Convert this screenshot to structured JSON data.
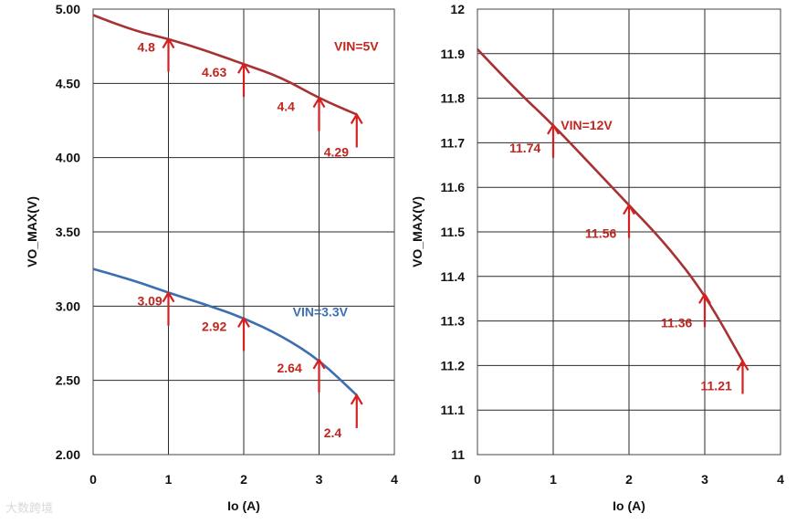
{
  "watermark": "大数跨境",
  "chart_data": [
    {
      "type": "line",
      "xlabel": "Io (A)",
      "ylabel": "VO_MAX(V)",
      "xlim": [
        0,
        4
      ],
      "ylim": [
        2.0,
        5.0
      ],
      "xticks": [
        "0",
        "1",
        "2",
        "3",
        "4"
      ],
      "yticks": [
        "2.00",
        "2.50",
        "3.00",
        "3.50",
        "4.00",
        "4.50",
        "5.00"
      ],
      "grid": true,
      "series": [
        {
          "name": "VIN=5V",
          "color": "#a83232",
          "x": [
            0,
            0.5,
            1,
            1.5,
            2,
            2.5,
            3,
            3.5
          ],
          "y": [
            4.96,
            4.86,
            4.8,
            4.72,
            4.63,
            4.54,
            4.4,
            4.29
          ],
          "labels": [
            {
              "x": 1,
              "y": 4.8,
              "text": "4.8"
            },
            {
              "x": 2,
              "y": 4.63,
              "text": "4.63"
            },
            {
              "x": 3,
              "y": 4.4,
              "text": "4.4"
            },
            {
              "x": 3.5,
              "y": 4.29,
              "text": "4.29"
            }
          ]
        },
        {
          "name": "VIN=3.3V",
          "color": "#3d6fb0",
          "x": [
            0,
            0.5,
            1,
            1.5,
            2,
            2.5,
            3,
            3.5
          ],
          "y": [
            3.25,
            3.18,
            3.09,
            3.01,
            2.92,
            2.8,
            2.64,
            2.4
          ],
          "labels": [
            {
              "x": 1,
              "y": 3.09,
              "text": "3.09"
            },
            {
              "x": 2,
              "y": 2.92,
              "text": "2.92"
            },
            {
              "x": 3,
              "y": 2.64,
              "text": "2.64"
            },
            {
              "x": 3.5,
              "y": 2.4,
              "text": "2.4"
            }
          ]
        }
      ]
    },
    {
      "type": "line",
      "xlabel": "Io (A)",
      "ylabel": "VO_MAX(V)",
      "xlim": [
        0,
        4
      ],
      "ylim": [
        11.0,
        12.0
      ],
      "xticks": [
        "0",
        "1",
        "2",
        "3",
        "4"
      ],
      "yticks": [
        "11",
        "11.1",
        "11.2",
        "11.3",
        "11.4",
        "11.5",
        "11.6",
        "11.7",
        "11.8",
        "11.9",
        "12"
      ],
      "grid": true,
      "series": [
        {
          "name": "VIN=12V",
          "color": "#a83232",
          "x": [
            0,
            0.5,
            1,
            1.5,
            2,
            2.5,
            3,
            3.5
          ],
          "y": [
            11.91,
            11.82,
            11.74,
            11.65,
            11.56,
            11.47,
            11.36,
            11.21
          ],
          "labels": [
            {
              "x": 1,
              "y": 11.74,
              "text": "11.74"
            },
            {
              "x": 2,
              "y": 11.56,
              "text": "11.56"
            },
            {
              "x": 3,
              "y": 11.36,
              "text": "11.36"
            },
            {
              "x": 3.5,
              "y": 11.21,
              "text": "11.21"
            }
          ]
        }
      ]
    }
  ]
}
